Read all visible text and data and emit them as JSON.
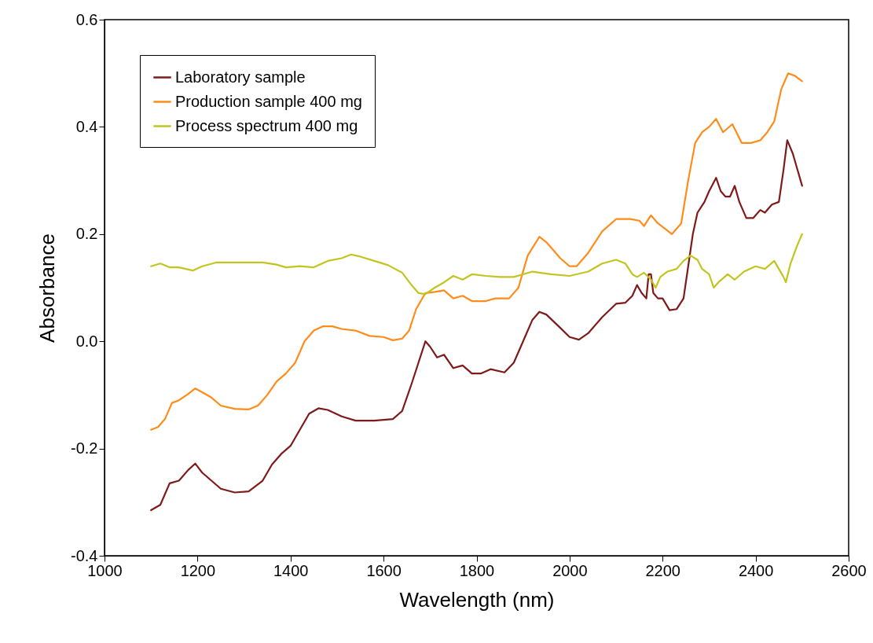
{
  "chart_data": {
    "type": "line",
    "xlabel": "Wavelength (nm)",
    "ylabel": "Absorbance",
    "xlim": [
      1000,
      2600
    ],
    "xticks": [
      1000,
      1200,
      1400,
      1600,
      1800,
      2000,
      2200,
      2400,
      2600
    ],
    "ylim": [
      -0.4,
      0.6
    ],
    "yticks": [
      {
        "value": -0.4,
        "label": "-0.4"
      },
      {
        "value": -0.2,
        "label": "-0.2"
      },
      {
        "value": 0,
        "label": "0.0"
      },
      {
        "value": 0.2,
        "label": "0.2"
      },
      {
        "value": 0.4,
        "label": "0.4"
      },
      {
        "value": 0.6,
        "label": "0.6"
      }
    ],
    "grid": false,
    "legend": "top left",
    "series": [
      {
        "name": "Laboratory sample",
        "color": "#7f1a1a",
        "x": [
          1100,
          1120,
          1140,
          1160,
          1180,
          1195,
          1210,
          1230,
          1250,
          1280,
          1310,
          1340,
          1360,
          1380,
          1400,
          1420,
          1440,
          1460,
          1480,
          1510,
          1540,
          1580,
          1620,
          1640,
          1660,
          1675,
          1690,
          1700,
          1715,
          1730,
          1750,
          1770,
          1790,
          1810,
          1830,
          1860,
          1880,
          1900,
          1920,
          1935,
          1950,
          1980,
          2000,
          2020,
          2040,
          2070,
          2100,
          2120,
          2135,
          2145,
          2155,
          2165,
          2170,
          2175,
          2180,
          2190,
          2200,
          2215,
          2230,
          2245,
          2255,
          2265,
          2275,
          2290,
          2300,
          2315,
          2325,
          2335,
          2345,
          2355,
          2365,
          2380,
          2395,
          2410,
          2420,
          2435,
          2450,
          2460,
          2468,
          2480,
          2490,
          2500
        ],
        "values": [
          -0.315,
          -0.305,
          -0.265,
          -0.26,
          -0.24,
          -0.228,
          -0.245,
          -0.26,
          -0.275,
          -0.282,
          -0.28,
          -0.26,
          -0.23,
          -0.21,
          -0.195,
          -0.165,
          -0.135,
          -0.125,
          -0.128,
          -0.14,
          -0.148,
          -0.148,
          -0.145,
          -0.13,
          -0.08,
          -0.04,
          0.0,
          -0.01,
          -0.03,
          -0.025,
          -0.05,
          -0.045,
          -0.06,
          -0.06,
          -0.052,
          -0.058,
          -0.04,
          0.0,
          0.04,
          0.055,
          0.05,
          0.025,
          0.008,
          0.003,
          0.015,
          0.045,
          0.07,
          0.072,
          0.085,
          0.105,
          0.09,
          0.08,
          0.125,
          0.125,
          0.09,
          0.08,
          0.08,
          0.058,
          0.06,
          0.08,
          0.14,
          0.2,
          0.24,
          0.26,
          0.28,
          0.305,
          0.28,
          0.27,
          0.27,
          0.29,
          0.26,
          0.23,
          0.23,
          0.245,
          0.24,
          0.255,
          0.26,
          0.32,
          0.375,
          0.35,
          0.32,
          0.29
        ]
      },
      {
        "name": "Production sample 400 mg",
        "color": "#ff8c1a",
        "x": [
          1100,
          1115,
          1130,
          1145,
          1160,
          1180,
          1195,
          1210,
          1230,
          1250,
          1280,
          1310,
          1330,
          1350,
          1370,
          1390,
          1410,
          1430,
          1450,
          1470,
          1490,
          1510,
          1540,
          1570,
          1600,
          1620,
          1640,
          1655,
          1670,
          1690,
          1710,
          1730,
          1750,
          1770,
          1790,
          1820,
          1840,
          1870,
          1890,
          1910,
          1935,
          1950,
          1980,
          2000,
          2015,
          2040,
          2070,
          2100,
          2130,
          2150,
          2160,
          2175,
          2190,
          2205,
          2220,
          2240,
          2255,
          2270,
          2285,
          2300,
          2315,
          2330,
          2350,
          2370,
          2390,
          2410,
          2425,
          2440,
          2455,
          2470,
          2485,
          2500
        ],
        "values": [
          -0.165,
          -0.16,
          -0.145,
          -0.115,
          -0.11,
          -0.098,
          -0.088,
          -0.095,
          -0.105,
          -0.12,
          -0.126,
          -0.127,
          -0.12,
          -0.1,
          -0.075,
          -0.06,
          -0.04,
          0.0,
          0.02,
          0.028,
          0.028,
          0.023,
          0.02,
          0.01,
          0.008,
          0.002,
          0.005,
          0.02,
          0.06,
          0.09,
          0.092,
          0.095,
          0.08,
          0.085,
          0.075,
          0.075,
          0.08,
          0.08,
          0.1,
          0.16,
          0.195,
          0.185,
          0.155,
          0.14,
          0.14,
          0.165,
          0.205,
          0.228,
          0.228,
          0.225,
          0.215,
          0.235,
          0.22,
          0.21,
          0.2,
          0.22,
          0.3,
          0.37,
          0.39,
          0.4,
          0.415,
          0.39,
          0.405,
          0.37,
          0.37,
          0.375,
          0.39,
          0.41,
          0.47,
          0.5,
          0.495,
          0.485
        ]
      },
      {
        "name": "Process spectrum 400 mg",
        "color": "#c2c51f",
        "x": [
          1100,
          1120,
          1140,
          1160,
          1190,
          1210,
          1240,
          1280,
          1340,
          1370,
          1390,
          1420,
          1450,
          1480,
          1510,
          1530,
          1550,
          1580,
          1610,
          1640,
          1660,
          1675,
          1690,
          1710,
          1730,
          1750,
          1770,
          1790,
          1820,
          1850,
          1880,
          1920,
          1960,
          2000,
          2040,
          2070,
          2100,
          2120,
          2135,
          2145,
          2160,
          2175,
          2185,
          2195,
          2210,
          2230,
          2245,
          2260,
          2275,
          2285,
          2300,
          2310,
          2320,
          2340,
          2355,
          2375,
          2400,
          2420,
          2440,
          2460,
          2465,
          2475,
          2490,
          2500
        ],
        "values": [
          0.14,
          0.145,
          0.138,
          0.138,
          0.132,
          0.14,
          0.147,
          0.147,
          0.147,
          0.143,
          0.138,
          0.14,
          0.138,
          0.15,
          0.155,
          0.162,
          0.158,
          0.15,
          0.142,
          0.128,
          0.105,
          0.09,
          0.088,
          0.1,
          0.11,
          0.122,
          0.115,
          0.125,
          0.122,
          0.12,
          0.12,
          0.13,
          0.125,
          0.122,
          0.13,
          0.145,
          0.152,
          0.145,
          0.125,
          0.12,
          0.128,
          0.115,
          0.1,
          0.12,
          0.13,
          0.135,
          0.15,
          0.16,
          0.152,
          0.135,
          0.125,
          0.1,
          0.11,
          0.125,
          0.115,
          0.13,
          0.14,
          0.135,
          0.15,
          0.12,
          0.11,
          0.145,
          0.18,
          0.2
        ]
      }
    ]
  }
}
